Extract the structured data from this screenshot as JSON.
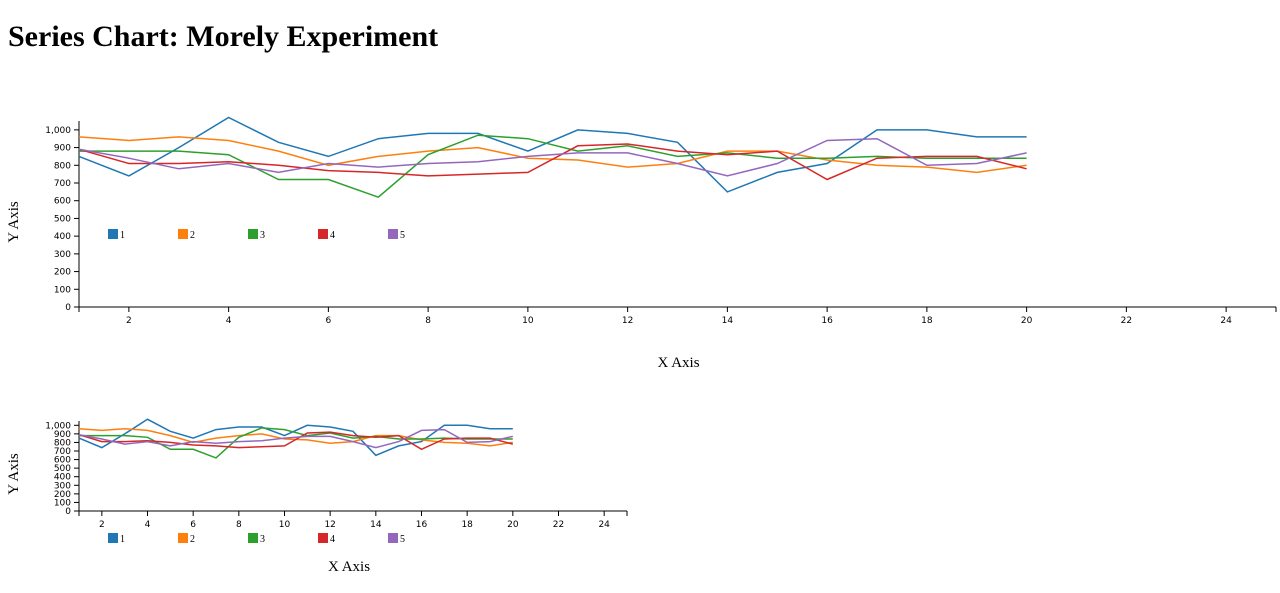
{
  "page": {
    "title": "Series Chart: Morely Experiment"
  },
  "chart_data": [
    {
      "type": "line",
      "xlabel": "X Axis",
      "ylabel": "Y Axis",
      "xlim": [
        1,
        25
      ],
      "ylim": [
        0,
        1050
      ],
      "x_ticks": [
        2,
        4,
        6,
        8,
        10,
        12,
        14,
        16,
        18,
        20,
        22,
        24
      ],
      "y_ticks": [
        0,
        100,
        200,
        300,
        400,
        500,
        600,
        700,
        800,
        900,
        1000
      ],
      "y_tick_labels": [
        "0",
        "100",
        "200",
        "300",
        "400",
        "500",
        "600",
        "700",
        "800",
        "900",
        "1,000"
      ],
      "legend_position": "top-left",
      "grid": false,
      "x": [
        1,
        2,
        3,
        4,
        5,
        6,
        7,
        8,
        9,
        10,
        11,
        12,
        13,
        14,
        15,
        16,
        17,
        18,
        19,
        20
      ],
      "series": [
        {
          "name": "1",
          "color": "#1f77b4",
          "values": [
            850,
            740,
            900,
            1070,
            930,
            850,
            950,
            980,
            980,
            880,
            1000,
            980,
            930,
            650,
            760,
            810,
            1000,
            1000,
            960,
            960
          ]
        },
        {
          "name": "2",
          "color": "#ff7f0e",
          "values": [
            960,
            940,
            960,
            940,
            880,
            800,
            850,
            880,
            900,
            840,
            830,
            790,
            810,
            880,
            880,
            830,
            800,
            790,
            760,
            800
          ]
        },
        {
          "name": "3",
          "color": "#2ca02c",
          "values": [
            880,
            880,
            880,
            860,
            720,
            720,
            620,
            860,
            970,
            950,
            880,
            910,
            850,
            870,
            840,
            840,
            850,
            840,
            840,
            840
          ]
        },
        {
          "name": "4",
          "color": "#d62728",
          "values": [
            890,
            810,
            810,
            820,
            800,
            770,
            760,
            740,
            750,
            760,
            910,
            920,
            880,
            860,
            880,
            720,
            840,
            850,
            850,
            780
          ]
        },
        {
          "name": "5",
          "color": "#9467bd",
          "values": [
            890,
            840,
            780,
            810,
            760,
            810,
            790,
            810,
            820,
            850,
            870,
            870,
            810,
            740,
            810,
            940,
            950,
            800,
            810,
            870
          ]
        }
      ]
    },
    {
      "type": "line",
      "xlabel": "X Axis",
      "ylabel": "Y Axis",
      "xlim": [
        1,
        25
      ],
      "ylim": [
        0,
        1050
      ],
      "x_ticks": [
        2,
        4,
        6,
        8,
        10,
        12,
        14,
        16,
        18,
        20,
        22,
        24
      ],
      "y_ticks": [
        0,
        100,
        200,
        300,
        400,
        500,
        600,
        700,
        800,
        900,
        1000
      ],
      "y_tick_labels": [
        "0",
        "100",
        "200",
        "300",
        "400",
        "500",
        "600",
        "700",
        "800",
        "900",
        "1,000"
      ],
      "legend_position": "bottom-left",
      "grid": false,
      "x": [
        1,
        2,
        3,
        4,
        5,
        6,
        7,
        8,
        9,
        10,
        11,
        12,
        13,
        14,
        15,
        16,
        17,
        18,
        19,
        20
      ],
      "series": [
        {
          "name": "1",
          "color": "#1f77b4",
          "values": [
            850,
            740,
            900,
            1070,
            930,
            850,
            950,
            980,
            980,
            880,
            1000,
            980,
            930,
            650,
            760,
            810,
            1000,
            1000,
            960,
            960
          ]
        },
        {
          "name": "2",
          "color": "#ff7f0e",
          "values": [
            960,
            940,
            960,
            940,
            880,
            800,
            850,
            880,
            900,
            840,
            830,
            790,
            810,
            880,
            880,
            830,
            800,
            790,
            760,
            800
          ]
        },
        {
          "name": "3",
          "color": "#2ca02c",
          "values": [
            880,
            880,
            880,
            860,
            720,
            720,
            620,
            860,
            970,
            950,
            880,
            910,
            850,
            870,
            840,
            840,
            850,
            840,
            840,
            840
          ]
        },
        {
          "name": "4",
          "color": "#d62728",
          "values": [
            890,
            810,
            810,
            820,
            800,
            770,
            760,
            740,
            750,
            760,
            910,
            920,
            880,
            860,
            880,
            720,
            840,
            850,
            850,
            780
          ]
        },
        {
          "name": "5",
          "color": "#9467bd",
          "values": [
            890,
            840,
            780,
            810,
            760,
            810,
            790,
            810,
            820,
            850,
            870,
            870,
            810,
            740,
            810,
            940,
            950,
            800,
            810,
            870
          ]
        }
      ]
    }
  ]
}
